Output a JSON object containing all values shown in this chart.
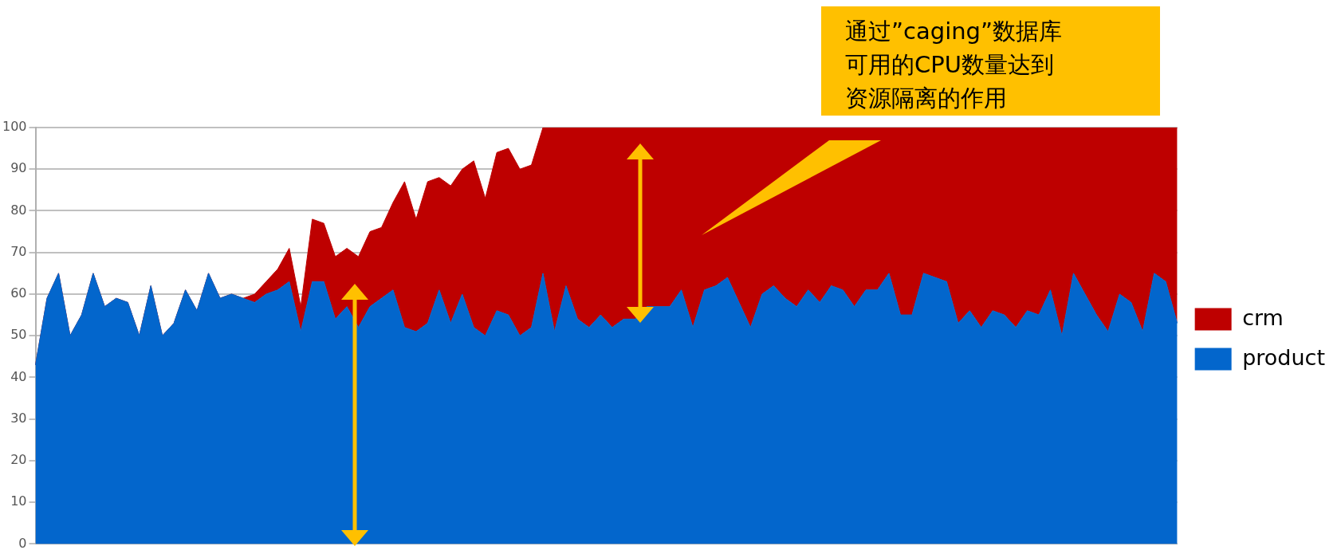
{
  "chart_data": {
    "type": "area",
    "stacked": true,
    "categories": [
      null,
      null,
      null,
      null,
      null,
      null,
      null,
      null,
      null,
      null,
      null,
      null,
      null,
      null,
      null,
      null,
      null,
      null,
      null,
      null,
      null,
      null,
      null,
      null,
      null,
      null,
      null,
      null,
      null,
      null,
      null,
      null,
      null,
      null,
      null,
      null,
      null,
      null,
      null,
      null,
      null,
      null,
      null,
      null,
      null,
      null,
      null,
      null,
      null,
      null,
      null,
      null,
      null,
      null,
      null,
      null,
      null,
      null,
      null,
      null,
      null,
      null,
      null,
      null,
      null,
      null,
      null,
      null,
      null,
      null,
      null,
      null,
      null,
      null,
      null,
      null,
      null,
      null,
      null,
      null,
      null,
      null,
      null,
      null,
      null,
      null,
      null,
      null,
      null,
      null,
      null,
      null,
      null,
      null,
      null,
      null,
      null,
      null,
      null,
      null
    ],
    "series": [
      {
        "name": "product",
        "color": "#0366cc",
        "values": [
          43,
          59,
          65,
          50,
          55,
          65,
          57,
          59,
          58,
          50,
          62,
          50,
          53,
          61,
          56,
          65,
          59,
          60,
          59,
          58,
          60,
          61,
          63,
          51,
          63,
          63,
          54,
          57,
          52,
          57,
          59,
          61,
          52,
          51,
          53,
          61,
          53,
          60,
          52,
          50,
          56,
          55,
          50,
          52,
          65,
          51,
          62,
          54,
          52,
          55,
          52,
          54,
          54,
          57,
          57,
          57,
          61,
          52,
          61,
          62,
          64,
          58,
          52,
          60,
          62,
          59,
          57,
          61,
          58,
          62,
          61,
          57,
          61,
          61,
          65,
          55,
          55,
          65,
          64,
          63,
          53,
          56,
          52,
          56,
          55,
          52,
          56,
          55,
          61,
          50,
          65,
          60,
          55,
          51,
          60,
          58,
          51,
          65,
          63,
          53
        ]
      },
      {
        "name": "crm",
        "color": "#be0000",
        "values": [
          0,
          0,
          0,
          0,
          0,
          0,
          0,
          0,
          0,
          0,
          0,
          0,
          0,
          0,
          0,
          0,
          0,
          0,
          0,
          2,
          3,
          5,
          8,
          6,
          15,
          14,
          15,
          14,
          17,
          18,
          17,
          21,
          35,
          27,
          34,
          27,
          33,
          30,
          40,
          33,
          38,
          40,
          40,
          39,
          35,
          49,
          38,
          46,
          48,
          45,
          48,
          46,
          46,
          43,
          43,
          43,
          39,
          48,
          39,
          38,
          36,
          42,
          48,
          40,
          38,
          41,
          43,
          39,
          42,
          38,
          39,
          43,
          39,
          39,
          35,
          45,
          45,
          35,
          36,
          37,
          47,
          44,
          48,
          44,
          45,
          48,
          44,
          45,
          39,
          50,
          35,
          40,
          45,
          49,
          40,
          42,
          49,
          35,
          37,
          47
        ]
      }
    ],
    "ylim": [
      0,
      100
    ],
    "yticks": [
      0,
      10,
      20,
      30,
      40,
      50,
      60,
      70,
      80,
      90,
      100
    ],
    "grid": "y",
    "legend": "right",
    "tick_labels": "y",
    "annotations": [
      "通过”caging”数据库可用的CPU数量达到资源隔离的作用"
    ]
  }
}
